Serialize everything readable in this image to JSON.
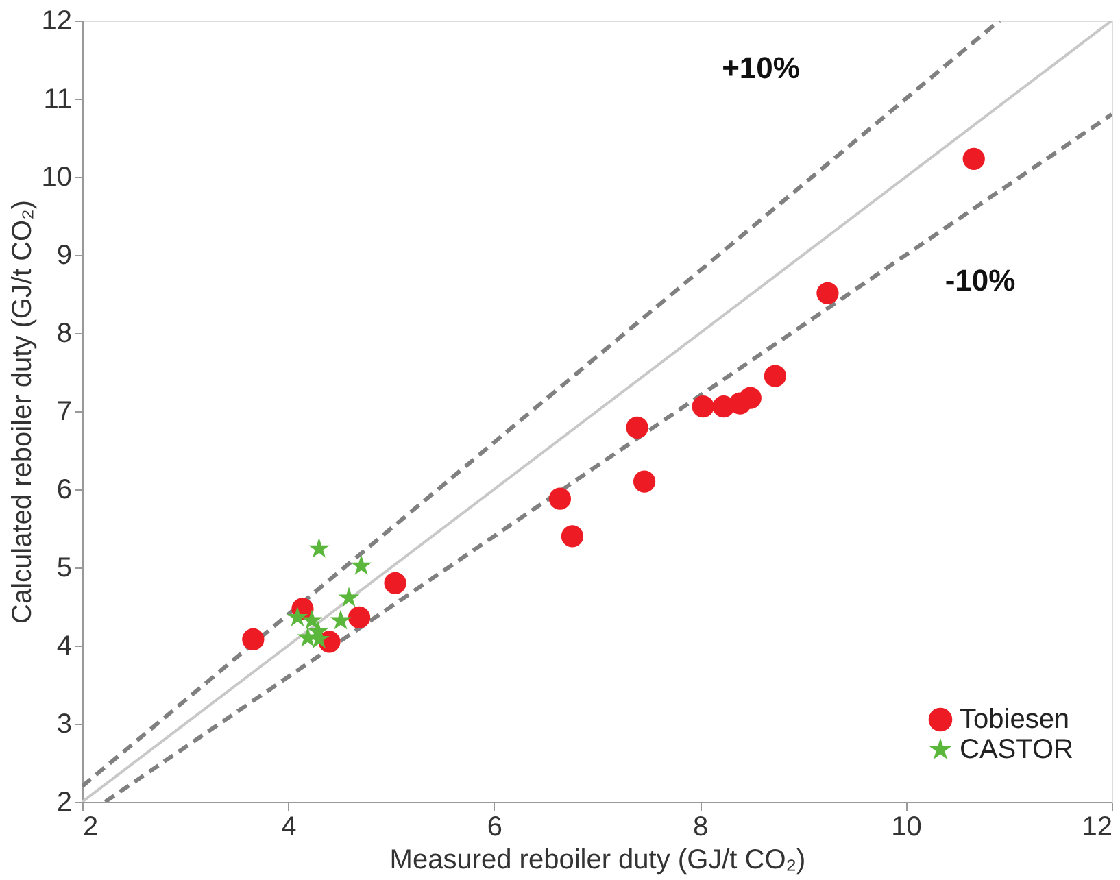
{
  "chart_data": {
    "type": "scatter",
    "xlabel": "Measured reboiler duty (GJ/t CO₂)",
    "ylabel": "Calculated reboiler duty (GJ/t CO₂)",
    "xlim": [
      2,
      12
    ],
    "ylim": [
      2,
      12
    ],
    "xticks": [
      2,
      4,
      6,
      8,
      10,
      12
    ],
    "yticks": [
      2,
      3,
      4,
      5,
      6,
      7,
      8,
      9,
      10,
      11,
      12
    ],
    "grid": false,
    "legend": "bottom right",
    "annotations": [
      "+10%",
      "-10%"
    ],
    "series": [
      {
        "type": "line",
        "color": "#c8c8c8",
        "line_style": "solid",
        "marker": "none",
        "x": [
          2,
          12
        ],
        "values": [
          2,
          12
        ]
      },
      {
        "type": "line",
        "color": "#808080",
        "line_style": "dashed",
        "marker": "none",
        "x": [
          2,
          10.909
        ],
        "values": [
          2.2,
          12
        ]
      },
      {
        "type": "line",
        "color": "#808080",
        "line_style": "dashed",
        "marker": "none",
        "x": [
          2.222,
          12
        ],
        "values": [
          2,
          10.8
        ]
      },
      {
        "name": "Tobiesen",
        "color": "#ed1c24",
        "marker": "circle",
        "x": [
          3.66,
          4.14,
          4.4,
          4.69,
          5.04,
          6.64,
          6.76,
          7.39,
          7.46,
          8.03,
          8.23,
          8.39,
          8.49,
          8.73,
          9.24,
          10.66
        ],
        "values": [
          4.08,
          4.47,
          4.05,
          4.36,
          4.8,
          5.88,
          5.4,
          6.79,
          6.1,
          7.06,
          7.06,
          7.1,
          7.17,
          7.45,
          8.51,
          10.23
        ]
      },
      {
        "name": "CASTOR",
        "color": "#5ab73c",
        "marker": "star",
        "x": [
          4.3,
          4.71,
          4.59,
          4.51,
          4.09,
          4.23,
          4.29,
          4.19,
          4.3
        ],
        "values": [
          5.24,
          5.02,
          4.61,
          4.32,
          4.36,
          4.32,
          4.18,
          4.1,
          4.08
        ]
      }
    ]
  }
}
